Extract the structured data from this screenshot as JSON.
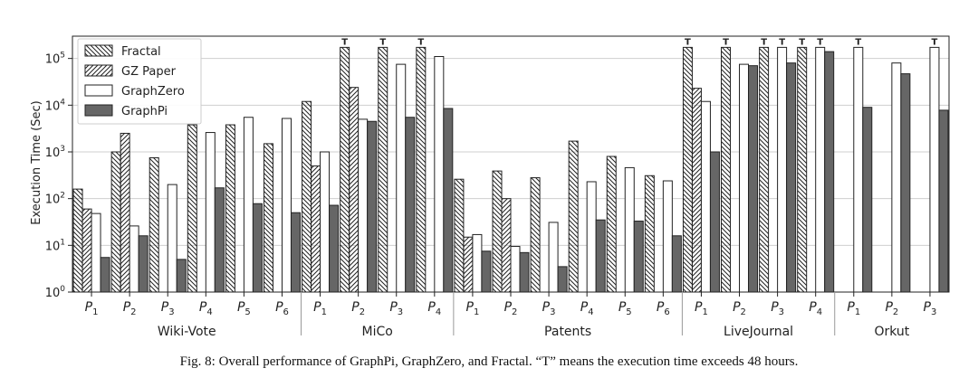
{
  "caption": "Fig. 8: Overall performance of GraphPi, GraphZero, and Fractal. “T” means the execution time exceeds 48 hours.",
  "chart_data": {
    "type": "bar",
    "yscale": "log",
    "ylabel": "Execution Time (Sec)",
    "ylim": [
      1,
      300000
    ],
    "yticks": [
      {
        "value": 1,
        "base": "10",
        "exp": "0"
      },
      {
        "value": 10,
        "base": "10",
        "exp": "1"
      },
      {
        "value": 100,
        "base": "10",
        "exp": "2"
      },
      {
        "value": 1000,
        "base": "10",
        "exp": "3"
      },
      {
        "value": 10000,
        "base": "10",
        "exp": "4"
      },
      {
        "value": 100000,
        "base": "10",
        "exp": "5"
      }
    ],
    "grid": true,
    "legend_position": "top-left",
    "timeout_marker": "T",
    "series": [
      {
        "name": "Fractal",
        "fill": "hatch-back",
        "color": "#ffffff"
      },
      {
        "name": "GZ Paper",
        "fill": "hatch-fwd",
        "color": "#ffffff"
      },
      {
        "name": "GraphZero",
        "fill": "solid",
        "color": "#ffffff"
      },
      {
        "name": "GraphPi",
        "fill": "solid",
        "color": "#666666"
      }
    ],
    "groups": [
      {
        "name": "Wiki-Vote",
        "patterns": [
          {
            "base": "P",
            "sub": "1",
            "values": [
              160,
              60,
              48,
              5.5
            ],
            "timeout": [
              false,
              false,
              false,
              false
            ]
          },
          {
            "base": "P",
            "sub": "2",
            "values": [
              1000,
              2500,
              26,
              16
            ],
            "timeout": [
              false,
              false,
              false,
              false
            ]
          },
          {
            "base": "P",
            "sub": "3",
            "values": [
              750,
              null,
              200,
              5
            ],
            "timeout": [
              false,
              false,
              false,
              false
            ]
          },
          {
            "base": "P",
            "sub": "4",
            "values": [
              3800,
              null,
              2600,
              170
            ],
            "timeout": [
              false,
              false,
              false,
              false
            ]
          },
          {
            "base": "P",
            "sub": "5",
            "values": [
              3800,
              null,
              5500,
              78
            ],
            "timeout": [
              false,
              false,
              false,
              false
            ]
          },
          {
            "base": "P",
            "sub": "6",
            "values": [
              1500,
              null,
              5200,
              50
            ],
            "timeout": [
              false,
              false,
              false,
              false
            ]
          }
        ]
      },
      {
        "name": "MiCo",
        "patterns": [
          {
            "base": "P",
            "sub": "1",
            "values": [
              12000,
              500,
              1000,
              72
            ],
            "timeout": [
              false,
              false,
              false,
              false
            ]
          },
          {
            "base": "P",
            "sub": "2",
            "values": [
              172800,
              24000,
              5000,
              4500
            ],
            "timeout": [
              true,
              false,
              false,
              false
            ]
          },
          {
            "base": "P",
            "sub": "3",
            "values": [
              172800,
              null,
              75000,
              5500
            ],
            "timeout": [
              true,
              false,
              false,
              false
            ]
          },
          {
            "base": "P",
            "sub": "4",
            "values": [
              172800,
              null,
              110000,
              8500
            ],
            "timeout": [
              true,
              false,
              false,
              false
            ]
          }
        ]
      },
      {
        "name": "Patents",
        "patterns": [
          {
            "base": "P",
            "sub": "1",
            "values": [
              260,
              15,
              17,
              7.5
            ],
            "timeout": [
              false,
              false,
              false,
              false
            ]
          },
          {
            "base": "P",
            "sub": "2",
            "values": [
              390,
              100,
              9.5,
              7
            ],
            "timeout": [
              false,
              false,
              false,
              false
            ]
          },
          {
            "base": "P",
            "sub": "3",
            "values": [
              280,
              null,
              31,
              3.5
            ],
            "timeout": [
              false,
              false,
              false,
              false
            ]
          },
          {
            "base": "P",
            "sub": "4",
            "values": [
              1700,
              null,
              230,
              35
            ],
            "timeout": [
              false,
              false,
              false,
              false
            ]
          },
          {
            "base": "P",
            "sub": "5",
            "values": [
              800,
              null,
              460,
              33
            ],
            "timeout": [
              false,
              false,
              false,
              false
            ]
          },
          {
            "base": "P",
            "sub": "6",
            "values": [
              310,
              null,
              240,
              16
            ],
            "timeout": [
              false,
              false,
              false,
              false
            ]
          }
        ]
      },
      {
        "name": "LiveJournal",
        "patterns": [
          {
            "base": "P",
            "sub": "1",
            "values": [
              172800,
              23000,
              12000,
              1000
            ],
            "timeout": [
              true,
              false,
              false,
              false
            ]
          },
          {
            "base": "P",
            "sub": "2",
            "values": [
              172800,
              null,
              75000,
              70000
            ],
            "timeout": [
              true,
              false,
              false,
              false
            ]
          },
          {
            "base": "P",
            "sub": "3",
            "values": [
              172800,
              null,
              172800,
              80000
            ],
            "timeout": [
              true,
              false,
              true,
              false
            ]
          },
          {
            "base": "P",
            "sub": "4",
            "values": [
              172800,
              null,
              172800,
              140000
            ],
            "timeout": [
              true,
              false,
              true,
              false
            ]
          }
        ]
      },
      {
        "name": "Orkut",
        "patterns": [
          {
            "base": "P",
            "sub": "1",
            "values": [
              null,
              null,
              172800,
              9000
            ],
            "timeout": [
              false,
              false,
              true,
              false
            ]
          },
          {
            "base": "P",
            "sub": "2",
            "values": [
              null,
              null,
              80000,
              47000
            ],
            "timeout": [
              false,
              false,
              false,
              false
            ]
          },
          {
            "base": "P",
            "sub": "3",
            "values": [
              null,
              null,
              172800,
              7800
            ],
            "timeout": [
              false,
              false,
              true,
              false
            ]
          }
        ]
      }
    ]
  }
}
